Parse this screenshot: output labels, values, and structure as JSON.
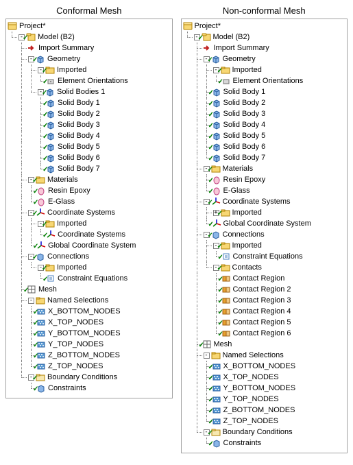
{
  "panels": [
    {
      "title": "Conformal Mesh",
      "root": {
        "label": "Project*",
        "icon": "project",
        "check": false
      }
    },
    {
      "title": "Non-conformal Mesh",
      "root": {
        "label": "Project*",
        "icon": "project",
        "check": false
      }
    }
  ],
  "labels": {
    "model": "Model (B2)",
    "importSummary": "Import Summary",
    "geometry": "Geometry",
    "imported": "Imported",
    "elementOrientations": "Element Orientations",
    "solidBodies1": "Solid Bodies 1",
    "solidBody": "Solid Body",
    "materials": "Materials",
    "resinEpoxy": "Resin Epoxy",
    "eGlass": "E-Glass",
    "coordSystems": "Coordinate Systems",
    "coordSystemsItem": "Coordinate Systems",
    "globalCoord": "Global Coordinate System",
    "connections": "Connections",
    "constraintEq": "Constraint Equations",
    "contacts": "Contacts",
    "contactRegion": "Contact Region",
    "mesh": "Mesh",
    "namedSel": "Named Selections",
    "ns_xb": "X_BOTTOM_NODES",
    "ns_xt": "X_TOP_NODES",
    "ns_yb": "Y_BOTTOM_NODES",
    "ns_yt": "Y_TOP_NODES",
    "ns_zb": "Z_BOTTOM_NODES",
    "ns_zt": "Z_TOP_NODES",
    "boundaryCond": "Boundary Conditions",
    "constraints": "Constraints"
  },
  "icons_colors": {
    "folder_fill": "#f7d774",
    "folder_stroke": "#b08000",
    "project_fill": "#f7d774",
    "project_stroke": "#b08000",
    "cube_fill": "#8bb6e8",
    "cube_stroke": "#2a5fa0",
    "axis_red": "#d00000",
    "axis_green": "#008000",
    "axis_blue": "#0000d0",
    "mesh_stroke": "#606060",
    "nodes_fill": "#5a9bd4",
    "arrow_red": "#c02020",
    "material_fill": "#f8c8d8",
    "material_stroke": "#c04080",
    "contact_orange": "#e8a030",
    "constraint_blue": "#4a80c0",
    "bc_fill": "#f7e8b0"
  }
}
